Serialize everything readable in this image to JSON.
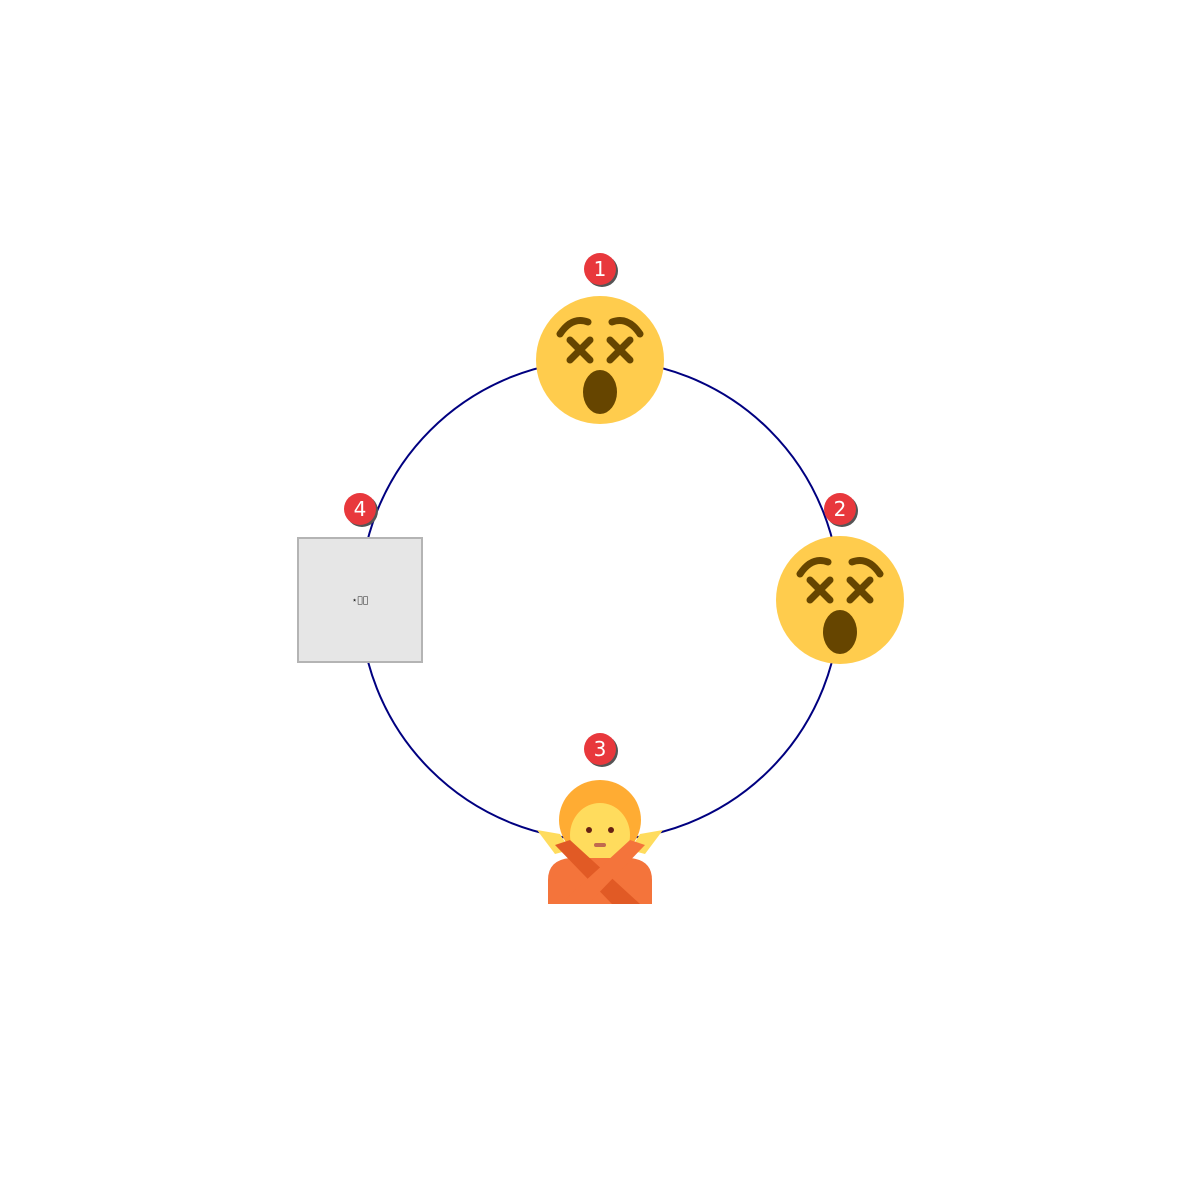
{
  "diagram": {
    "ring_color": "#000080",
    "badge_color": "#e8383c",
    "nodes": [
      {
        "number": "1",
        "icon": "dizzy-face-icon"
      },
      {
        "number": "2",
        "icon": "dizzy-face-icon"
      },
      {
        "number": "3",
        "icon": "person-gesturing-no-icon"
      },
      {
        "number": "4",
        "icon": "missing-image-placeholder",
        "placeholder_text": "⋆⃣⃣"
      }
    ]
  }
}
